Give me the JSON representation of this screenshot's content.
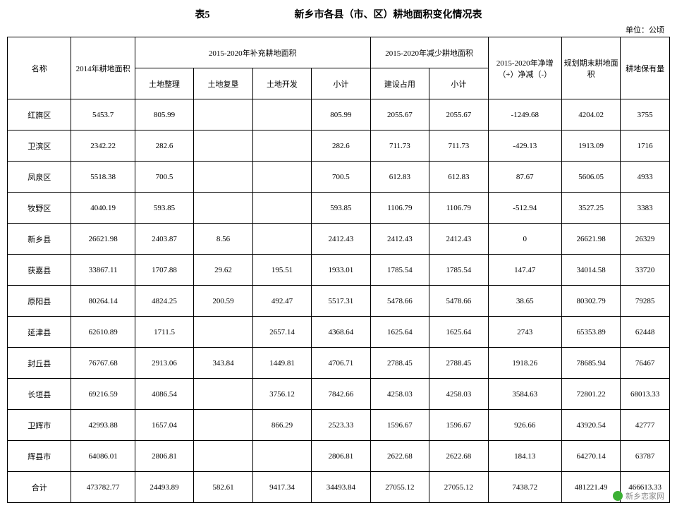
{
  "header": {
    "table_no": "表5",
    "title": "新乡市各县（市、区）耕地面积变化情况表",
    "unit": "单位：公顷"
  },
  "columns": {
    "name": "名称",
    "area2014": "2014年耕地面积",
    "supp_group": "2015-2020年补充耕地面积",
    "tdzl": "土地整理",
    "tdfk": "土地复垦",
    "tdkf": "土地开发",
    "subtotal1": "小计",
    "reduce_group": "2015-2020年减少耕地面积",
    "jszy": "建设占用",
    "subtotal2": "小计",
    "net": "2015-2020年净增（+）净减（-）",
    "planend": "规划期末耕地面积",
    "keep": "耕地保有量"
  },
  "rows": [
    {
      "name": "红旗区",
      "a": "5453.7",
      "b": "805.99",
      "c": "",
      "d": "",
      "e": "805.99",
      "f": "2055.67",
      "g": "2055.67",
      "h": "-1249.68",
      "i": "4204.02",
      "j": "3755"
    },
    {
      "name": "卫滨区",
      "a": "2342.22",
      "b": "282.6",
      "c": "",
      "d": "",
      "e": "282.6",
      "f": "711.73",
      "g": "711.73",
      "h": "-429.13",
      "i": "1913.09",
      "j": "1716"
    },
    {
      "name": "凤泉区",
      "a": "5518.38",
      "b": "700.5",
      "c": "",
      "d": "",
      "e": "700.5",
      "f": "612.83",
      "g": "612.83",
      "h": "87.67",
      "i": "5606.05",
      "j": "4933"
    },
    {
      "name": "牧野区",
      "a": "4040.19",
      "b": "593.85",
      "c": "",
      "d": "",
      "e": "593.85",
      "f": "1106.79",
      "g": "1106.79",
      "h": "-512.94",
      "i": "3527.25",
      "j": "3383"
    },
    {
      "name": "新乡县",
      "a": "26621.98",
      "b": "2403.87",
      "c": "8.56",
      "d": "",
      "e": "2412.43",
      "f": "2412.43",
      "g": "2412.43",
      "h": "0",
      "i": "26621.98",
      "j": "26329"
    },
    {
      "name": "获嘉县",
      "a": "33867.11",
      "b": "1707.88",
      "c": "29.62",
      "d": "195.51",
      "e": "1933.01",
      "f": "1785.54",
      "g": "1785.54",
      "h": "147.47",
      "i": "34014.58",
      "j": "33720"
    },
    {
      "name": "原阳县",
      "a": "80264.14",
      "b": "4824.25",
      "c": "200.59",
      "d": "492.47",
      "e": "5517.31",
      "f": "5478.66",
      "g": "5478.66",
      "h": "38.65",
      "i": "80302.79",
      "j": "79285"
    },
    {
      "name": "延津县",
      "a": "62610.89",
      "b": "1711.5",
      "c": "",
      "d": "2657.14",
      "e": "4368.64",
      "f": "1625.64",
      "g": "1625.64",
      "h": "2743",
      "i": "65353.89",
      "j": "62448"
    },
    {
      "name": "封丘县",
      "a": "76767.68",
      "b": "2913.06",
      "c": "343.84",
      "d": "1449.81",
      "e": "4706.71",
      "f": "2788.45",
      "g": "2788.45",
      "h": "1918.26",
      "i": "78685.94",
      "j": "76467"
    },
    {
      "name": "长垣县",
      "a": "69216.59",
      "b": "4086.54",
      "c": "",
      "d": "3756.12",
      "e": "7842.66",
      "f": "4258.03",
      "g": "4258.03",
      "h": "3584.63",
      "i": "72801.22",
      "j": "68013.33"
    },
    {
      "name": "卫辉市",
      "a": "42993.88",
      "b": "1657.04",
      "c": "",
      "d": "866.29",
      "e": "2523.33",
      "f": "1596.67",
      "g": "1596.67",
      "h": "926.66",
      "i": "43920.54",
      "j": "42777"
    },
    {
      "name": "辉县市",
      "a": "64086.01",
      "b": "2806.81",
      "c": "",
      "d": "",
      "e": "2806.81",
      "f": "2622.68",
      "g": "2622.68",
      "h": "184.13",
      "i": "64270.14",
      "j": "63787"
    },
    {
      "name": "合计",
      "a": "473782.77",
      "b": "24493.89",
      "c": "582.61",
      "d": "9417.34",
      "e": "34493.84",
      "f": "27055.12",
      "g": "27055.12",
      "h": "7438.72",
      "i": "481221.49",
      "j": "466613.33"
    }
  ],
  "footer": "新乡恋家网"
}
